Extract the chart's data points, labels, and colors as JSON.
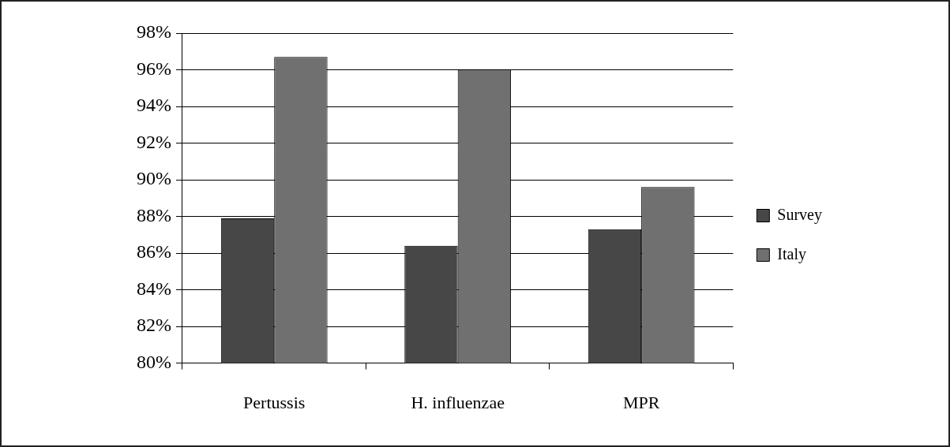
{
  "chart_data": {
    "type": "bar",
    "categories": [
      "Pertussis",
      "H. influenzae",
      "MPR"
    ],
    "series": [
      {
        "name": "Survey",
        "color": "#474747",
        "values": [
          87.9,
          86.4,
          87.3
        ]
      },
      {
        "name": "Italy",
        "color": "#707070",
        "values": [
          96.7,
          96.0,
          89.6
        ]
      }
    ],
    "ylim": [
      80,
      98
    ],
    "yticks": [
      {
        "value": 80,
        "label": "80%"
      },
      {
        "value": 82,
        "label": "82%"
      },
      {
        "value": 84,
        "label": "84%"
      },
      {
        "value": 86,
        "label": "86%"
      },
      {
        "value": 88,
        "label": "88%"
      },
      {
        "value": 90,
        "label": "90%"
      },
      {
        "value": 92,
        "label": "92%"
      },
      {
        "value": 94,
        "label": "94%"
      },
      {
        "value": 96,
        "label": "96%"
      },
      {
        "value": 98,
        "label": "98%"
      }
    ],
    "grid": "y",
    "legend": "right"
  }
}
